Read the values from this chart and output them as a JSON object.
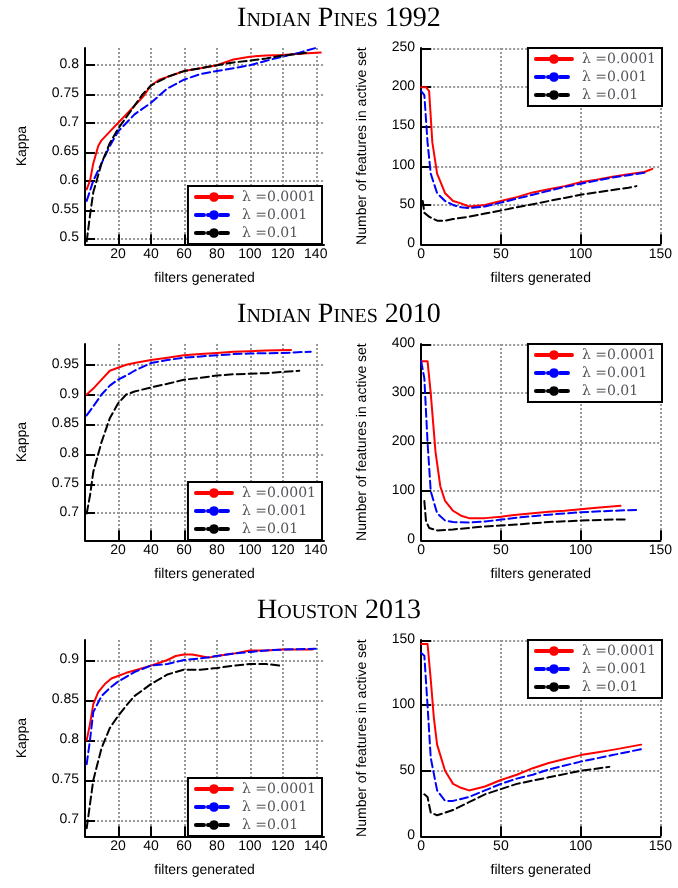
{
  "chart_data": [
    {
      "type": "line",
      "title": "Indian Pines 1992",
      "xlabel": "filters generated",
      "ylabel": "Kappa",
      "xlim": [
        0,
        145
      ],
      "xticks": [
        20,
        40,
        60,
        80,
        100,
        120,
        140
      ],
      "ylim": [
        0.49,
        0.83
      ],
      "yticks": [
        0.5,
        0.55,
        0.6,
        0.65,
        0.7,
        0.75,
        0.8
      ],
      "grid": true,
      "legend": "bottom right",
      "marker": "none",
      "series": [
        {
          "name": "λ =0.0001",
          "color": "#ff0000",
          "line_style": "solid",
          "x": [
            1,
            3,
            5,
            8,
            10,
            15,
            20,
            25,
            30,
            35,
            40,
            45,
            50,
            55,
            60,
            70,
            80,
            90,
            100,
            110,
            120,
            130,
            143
          ],
          "values": [
            0.585,
            0.6,
            0.63,
            0.66,
            0.67,
            0.685,
            0.7,
            0.715,
            0.73,
            0.745,
            0.765,
            0.775,
            0.78,
            0.785,
            0.79,
            0.795,
            0.8,
            0.81,
            0.815,
            0.817,
            0.818,
            0.82,
            0.822
          ]
        },
        {
          "name": "λ =0.001",
          "color": "#0000ff",
          "line_style": "dashed",
          "x": [
            1,
            5,
            10,
            15,
            20,
            25,
            30,
            40,
            50,
            60,
            70,
            80,
            90,
            100,
            110,
            120,
            130,
            140
          ],
          "values": [
            0.565,
            0.6,
            0.63,
            0.66,
            0.685,
            0.7,
            0.715,
            0.735,
            0.76,
            0.775,
            0.785,
            0.79,
            0.795,
            0.8,
            0.808,
            0.815,
            0.822,
            0.83
          ]
        },
        {
          "name": "λ =0.01",
          "color": "#000000",
          "line_style": "dashed",
          "x": [
            1,
            3,
            5,
            10,
            15,
            20,
            25,
            30,
            35,
            40,
            50,
            60,
            70,
            80,
            90,
            100,
            110,
            120,
            130,
            135
          ],
          "values": [
            0.495,
            0.54,
            0.58,
            0.63,
            0.665,
            0.69,
            0.71,
            0.73,
            0.75,
            0.765,
            0.78,
            0.79,
            0.795,
            0.8,
            0.805,
            0.808,
            0.812,
            0.817,
            0.82,
            0.822
          ]
        }
      ]
    },
    {
      "type": "line",
      "xlabel": "filters generated",
      "ylabel": "Number of features in active set",
      "xlim": [
        0,
        150
      ],
      "xticks": [
        0,
        50,
        100,
        150
      ],
      "ylim": [
        0,
        250
      ],
      "yticks": [
        0,
        50,
        100,
        150,
        200,
        250
      ],
      "grid": true,
      "legend": "top right",
      "marker": "none",
      "series": [
        {
          "name": "λ =0.0001",
          "color": "#ff0000",
          "line_style": "solid",
          "x": [
            0,
            3,
            5,
            7,
            10,
            15,
            20,
            25,
            30,
            40,
            50,
            60,
            70,
            80,
            90,
            100,
            110,
            120,
            130,
            140,
            145
          ],
          "values": [
            200,
            200,
            195,
            130,
            90,
            65,
            55,
            52,
            48,
            50,
            55,
            60,
            66,
            70,
            74,
            79,
            82,
            86,
            89,
            92,
            96
          ]
        },
        {
          "name": "λ =0.001",
          "color": "#0000ff",
          "line_style": "dashed",
          "x": [
            0,
            2,
            4,
            6,
            10,
            15,
            20,
            25,
            30,
            40,
            50,
            60,
            70,
            80,
            90,
            100,
            110,
            120,
            130,
            140
          ],
          "values": [
            195,
            190,
            130,
            90,
            65,
            55,
            50,
            47,
            46,
            48,
            53,
            58,
            63,
            68,
            73,
            77,
            81,
            85,
            88,
            91
          ]
        },
        {
          "name": "λ =0.01",
          "color": "#000000",
          "line_style": "dashed",
          "x": [
            1,
            2,
            5,
            10,
            15,
            20,
            30,
            40,
            50,
            60,
            70,
            80,
            90,
            100,
            110,
            120,
            130,
            135
          ],
          "values": [
            55,
            40,
            35,
            30,
            30,
            32,
            35,
            39,
            43,
            47,
            51,
            55,
            59,
            63,
            66,
            69,
            72,
            74
          ]
        }
      ]
    },
    {
      "type": "line",
      "title": "Indian Pines 2010",
      "xlabel": "filters generated",
      "ylabel": "Kappa",
      "xlim": [
        0,
        145
      ],
      "xticks": [
        20,
        40,
        60,
        80,
        100,
        120,
        140
      ],
      "ylim": [
        0.655,
        0.985
      ],
      "yticks": [
        0.7,
        0.75,
        0.8,
        0.85,
        0.9,
        0.95
      ],
      "grid": true,
      "legend": "bottom right",
      "marker": "none",
      "series": [
        {
          "name": "λ =0.0001",
          "color": "#ff0000",
          "line_style": "solid",
          "x": [
            1,
            5,
            10,
            15,
            20,
            25,
            30,
            40,
            50,
            60,
            70,
            80,
            90,
            100,
            110,
            125
          ],
          "values": [
            0.9,
            0.91,
            0.925,
            0.94,
            0.945,
            0.95,
            0.953,
            0.958,
            0.962,
            0.966,
            0.968,
            0.97,
            0.972,
            0.973,
            0.974,
            0.975
          ]
        },
        {
          "name": "λ =0.001",
          "color": "#0000ff",
          "line_style": "dashed",
          "x": [
            1,
            5,
            10,
            15,
            20,
            25,
            30,
            40,
            50,
            60,
            70,
            80,
            90,
            100,
            120,
            137
          ],
          "values": [
            0.865,
            0.88,
            0.9,
            0.915,
            0.925,
            0.932,
            0.94,
            0.953,
            0.958,
            0.962,
            0.964,
            0.966,
            0.968,
            0.969,
            0.97,
            0.972
          ]
        },
        {
          "name": "λ =0.01",
          "color": "#000000",
          "line_style": "dashed",
          "x": [
            1,
            3,
            5,
            8,
            10,
            15,
            20,
            25,
            30,
            40,
            50,
            60,
            70,
            80,
            90,
            100,
            110,
            130
          ],
          "values": [
            0.7,
            0.73,
            0.77,
            0.8,
            0.82,
            0.86,
            0.885,
            0.9,
            0.905,
            0.912,
            0.918,
            0.925,
            0.928,
            0.932,
            0.934,
            0.935,
            0.936,
            0.94
          ]
        }
      ]
    },
    {
      "type": "line",
      "xlabel": "filters generated",
      "ylabel": "Number of features in active set",
      "xlim": [
        0,
        150
      ],
      "xticks": [
        0,
        50,
        100,
        150
      ],
      "ylim": [
        0,
        400
      ],
      "yticks": [
        0,
        100,
        200,
        300,
        400
      ],
      "grid": true,
      "legend": "top right",
      "marker": "none",
      "series": [
        {
          "name": "λ =0.0001",
          "color": "#ff0000",
          "line_style": "solid",
          "x": [
            0,
            4,
            6,
            9,
            12,
            15,
            20,
            25,
            30,
            40,
            50,
            60,
            70,
            80,
            90,
            100,
            110,
            125
          ],
          "values": [
            365,
            365,
            300,
            180,
            110,
            80,
            60,
            50,
            45,
            45,
            48,
            52,
            55,
            58,
            60,
            63,
            66,
            70
          ]
        },
        {
          "name": "λ =0.001",
          "color": "#0000ff",
          "line_style": "dashed",
          "x": [
            0,
            2,
            4,
            6,
            10,
            15,
            20,
            30,
            40,
            50,
            60,
            80,
            100,
            120,
            137
          ],
          "values": [
            365,
            330,
            200,
            100,
            55,
            40,
            37,
            36,
            38,
            42,
            46,
            52,
            57,
            60,
            62
          ]
        },
        {
          "name": "λ =0.01",
          "color": "#000000",
          "line_style": "dashed",
          "x": [
            2,
            3,
            5,
            10,
            20,
            30,
            40,
            60,
            80,
            100,
            120,
            130
          ],
          "values": [
            80,
            40,
            25,
            20,
            22,
            25,
            28,
            32,
            37,
            40,
            42,
            42
          ]
        }
      ]
    },
    {
      "type": "line",
      "title": "Houston 2013",
      "xlabel": "filters generated",
      "ylabel": "Kappa",
      "xlim": [
        0,
        145
      ],
      "xticks": [
        20,
        40,
        60,
        80,
        100,
        120,
        140
      ],
      "ylim": [
        0.68,
        0.925
      ],
      "yticks": [
        0.7,
        0.75,
        0.8,
        0.85,
        0.9
      ],
      "grid": true,
      "legend": "bottom right",
      "marker": "none",
      "series": [
        {
          "name": "λ =0.0001",
          "color": "#ff0000",
          "line_style": "solid",
          "x": [
            1,
            3,
            5,
            8,
            12,
            16,
            20,
            25,
            30,
            40,
            50,
            55,
            60,
            65,
            70,
            75,
            80,
            90,
            100,
            110,
            120,
            138
          ],
          "values": [
            0.8,
            0.82,
            0.845,
            0.86,
            0.87,
            0.877,
            0.88,
            0.884,
            0.887,
            0.893,
            0.9,
            0.905,
            0.907,
            0.907,
            0.905,
            0.903,
            0.905,
            0.908,
            0.912,
            0.912,
            0.913,
            0.913
          ]
        },
        {
          "name": "λ =0.001",
          "color": "#0000ff",
          "line_style": "dashed",
          "x": [
            1,
            3,
            5,
            10,
            15,
            20,
            30,
            40,
            50,
            60,
            70,
            80,
            90,
            100,
            110,
            120,
            140
          ],
          "values": [
            0.77,
            0.8,
            0.835,
            0.855,
            0.865,
            0.873,
            0.885,
            0.893,
            0.895,
            0.9,
            0.902,
            0.905,
            0.908,
            0.91,
            0.912,
            0.913,
            0.914
          ]
        },
        {
          "name": "λ =0.01",
          "color": "#000000",
          "line_style": "dashed",
          "x": [
            1,
            3,
            5,
            10,
            15,
            20,
            25,
            30,
            40,
            50,
            60,
            70,
            80,
            90,
            100,
            110,
            118
          ],
          "values": [
            0.69,
            0.72,
            0.75,
            0.79,
            0.815,
            0.83,
            0.843,
            0.855,
            0.87,
            0.882,
            0.888,
            0.888,
            0.89,
            0.893,
            0.895,
            0.895,
            0.893
          ]
        }
      ]
    },
    {
      "type": "line",
      "xlabel": "filters generated",
      "ylabel": "Number of features in active set",
      "xlim": [
        0,
        150
      ],
      "xticks": [
        0,
        50,
        100,
        150
      ],
      "ylim": [
        0,
        150
      ],
      "yticks": [
        0,
        50,
        100,
        150
      ],
      "grid": true,
      "legend": "top right",
      "marker": "none",
      "series": [
        {
          "name": "λ =0.0001",
          "color": "#ff0000",
          "line_style": "solid",
          "x": [
            0,
            4,
            6,
            8,
            10,
            15,
            20,
            25,
            30,
            40,
            50,
            60,
            70,
            80,
            90,
            100,
            110,
            120,
            138
          ],
          "values": [
            147,
            147,
            120,
            90,
            70,
            50,
            40,
            37,
            35,
            38,
            43,
            47,
            52,
            56,
            59,
            62,
            64,
            66,
            70
          ]
        },
        {
          "name": "λ =0.001",
          "color": "#0000ff",
          "line_style": "dashed",
          "x": [
            0,
            2,
            4,
            6,
            10,
            15,
            20,
            30,
            40,
            50,
            60,
            70,
            80,
            90,
            100,
            120,
            140
          ],
          "values": [
            140,
            138,
            100,
            60,
            35,
            27,
            27,
            30,
            35,
            40,
            44,
            47,
            51,
            54,
            57,
            62,
            67
          ]
        },
        {
          "name": "λ =0.01",
          "color": "#000000",
          "line_style": "dashed",
          "x": [
            2,
            4,
            6,
            10,
            20,
            30,
            40,
            60,
            80,
            100,
            118
          ],
          "values": [
            32,
            30,
            18,
            16,
            20,
            26,
            32,
            40,
            45,
            50,
            53
          ]
        }
      ]
    }
  ]
}
